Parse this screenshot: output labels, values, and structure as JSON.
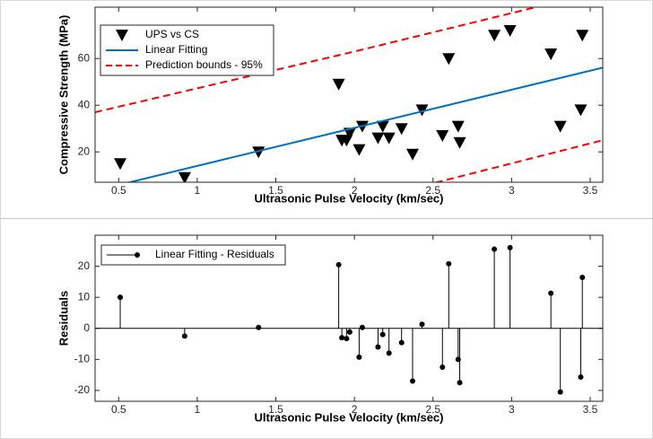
{
  "chart_data": [
    {
      "type": "scatter",
      "x_label": "Ultrasonic Pulse Velocity (km/sec)",
      "y_label": "Compressive Strength (MPa)",
      "xlim": [
        0.35,
        3.58
      ],
      "ylim": [
        7,
        82
      ],
      "xticks": [
        0.5,
        1,
        1.5,
        2,
        2.5,
        3,
        3.5
      ],
      "yticks": [
        20,
        40,
        60
      ],
      "legend": "upper left",
      "series": [
        {
          "name": "UPS vs CS",
          "color": "#000000",
          "marker": "triangle-down",
          "x": [
            0.51,
            0.92,
            1.39,
            1.9,
            1.92,
            1.95,
            1.97,
            2.03,
            2.05,
            2.15,
            2.18,
            2.22,
            2.3,
            2.37,
            2.43,
            2.56,
            2.6,
            2.66,
            2.67,
            2.89,
            2.99,
            3.25,
            3.31,
            3.44,
            3.45
          ],
          "values": [
            15,
            9,
            20,
            49,
            25,
            25,
            28,
            21,
            31,
            26,
            31,
            26,
            30,
            19,
            38,
            27,
            60,
            31,
            24,
            70,
            72,
            62,
            31,
            38,
            70
          ]
        },
        {
          "name": "Linear Fitting",
          "color": "#0072bd",
          "marker": "line",
          "x": [
            0.35,
            3.58
          ],
          "values": [
            3.4,
            56.1
          ]
        },
        {
          "name": "Prediction bounds - 95%",
          "color": "#ff0000",
          "marker": "dashed",
          "x": [
            0.35,
            2,
            3.58
          ],
          "values": [
            37,
            63,
            89
          ],
          "lower": [
            -28,
            -2,
            25
          ]
        }
      ]
    },
    {
      "type": "stem",
      "x_label": "Ultrasonic Pulse Velocity (km/sec)",
      "y_label": "Residuals",
      "xlim": [
        0.35,
        3.58
      ],
      "ylim": [
        -23.5,
        30
      ],
      "xticks": [
        0.5,
        1,
        1.5,
        2,
        2.5,
        3,
        3.5
      ],
      "yticks": [
        -20,
        -10,
        0,
        10,
        20
      ],
      "legend": "upper left",
      "series": [
        {
          "name": "Linear Fitting - Residuals",
          "color": "#000000",
          "x": [
            0.51,
            0.92,
            1.39,
            1.9,
            1.92,
            1.95,
            1.97,
            2.03,
            2.05,
            2.15,
            2.18,
            2.22,
            2.3,
            2.37,
            2.43,
            2.56,
            2.6,
            2.66,
            2.67,
            2.89,
            2.99,
            3.25,
            3.31,
            3.44,
            3.45
          ],
          "values": [
            10,
            -2.5,
            0.3,
            20.5,
            -3,
            -3.3,
            -1.2,
            -9.3,
            0.3,
            -6,
            -2,
            -8,
            -4.6,
            -17,
            1.3,
            -12.5,
            20.8,
            -10,
            -17.5,
            25.5,
            26,
            11.3,
            -20.5,
            -15.7,
            16.4
          ]
        }
      ]
    }
  ]
}
